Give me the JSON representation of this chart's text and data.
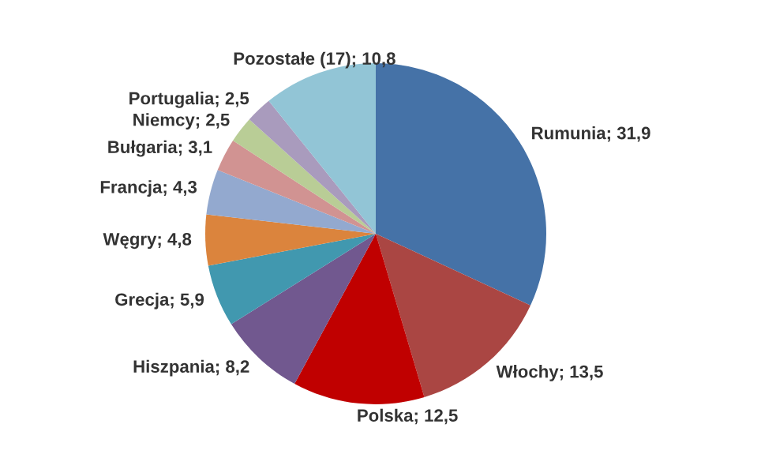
{
  "chart_data": {
    "type": "pie",
    "categories": [
      "Rumunia",
      "Włochy",
      "Polska",
      "Hiszpania",
      "Grecja",
      "Węgry",
      "Francja",
      "Bułgaria",
      "Niemcy",
      "Portugalia",
      "Pozostałe (17)"
    ],
    "values": [
      31.9,
      13.5,
      12.5,
      8.2,
      5.9,
      4.8,
      4.3,
      3.1,
      2.5,
      2.5,
      10.8
    ],
    "value_labels": [
      "31,9",
      "13,5",
      "12,5",
      "8,2",
      "5,9",
      "4,8",
      "4,3",
      "3,1",
      "2,5",
      "2,5",
      "10,8"
    ],
    "colors": [
      "#4572a7",
      "#aa4643",
      "#c00000",
      "#71588f",
      "#4198af",
      "#db843d",
      "#93a9cf",
      "#d19392",
      "#b9cd96",
      "#a99bbd",
      "#92c5d6"
    ]
  }
}
